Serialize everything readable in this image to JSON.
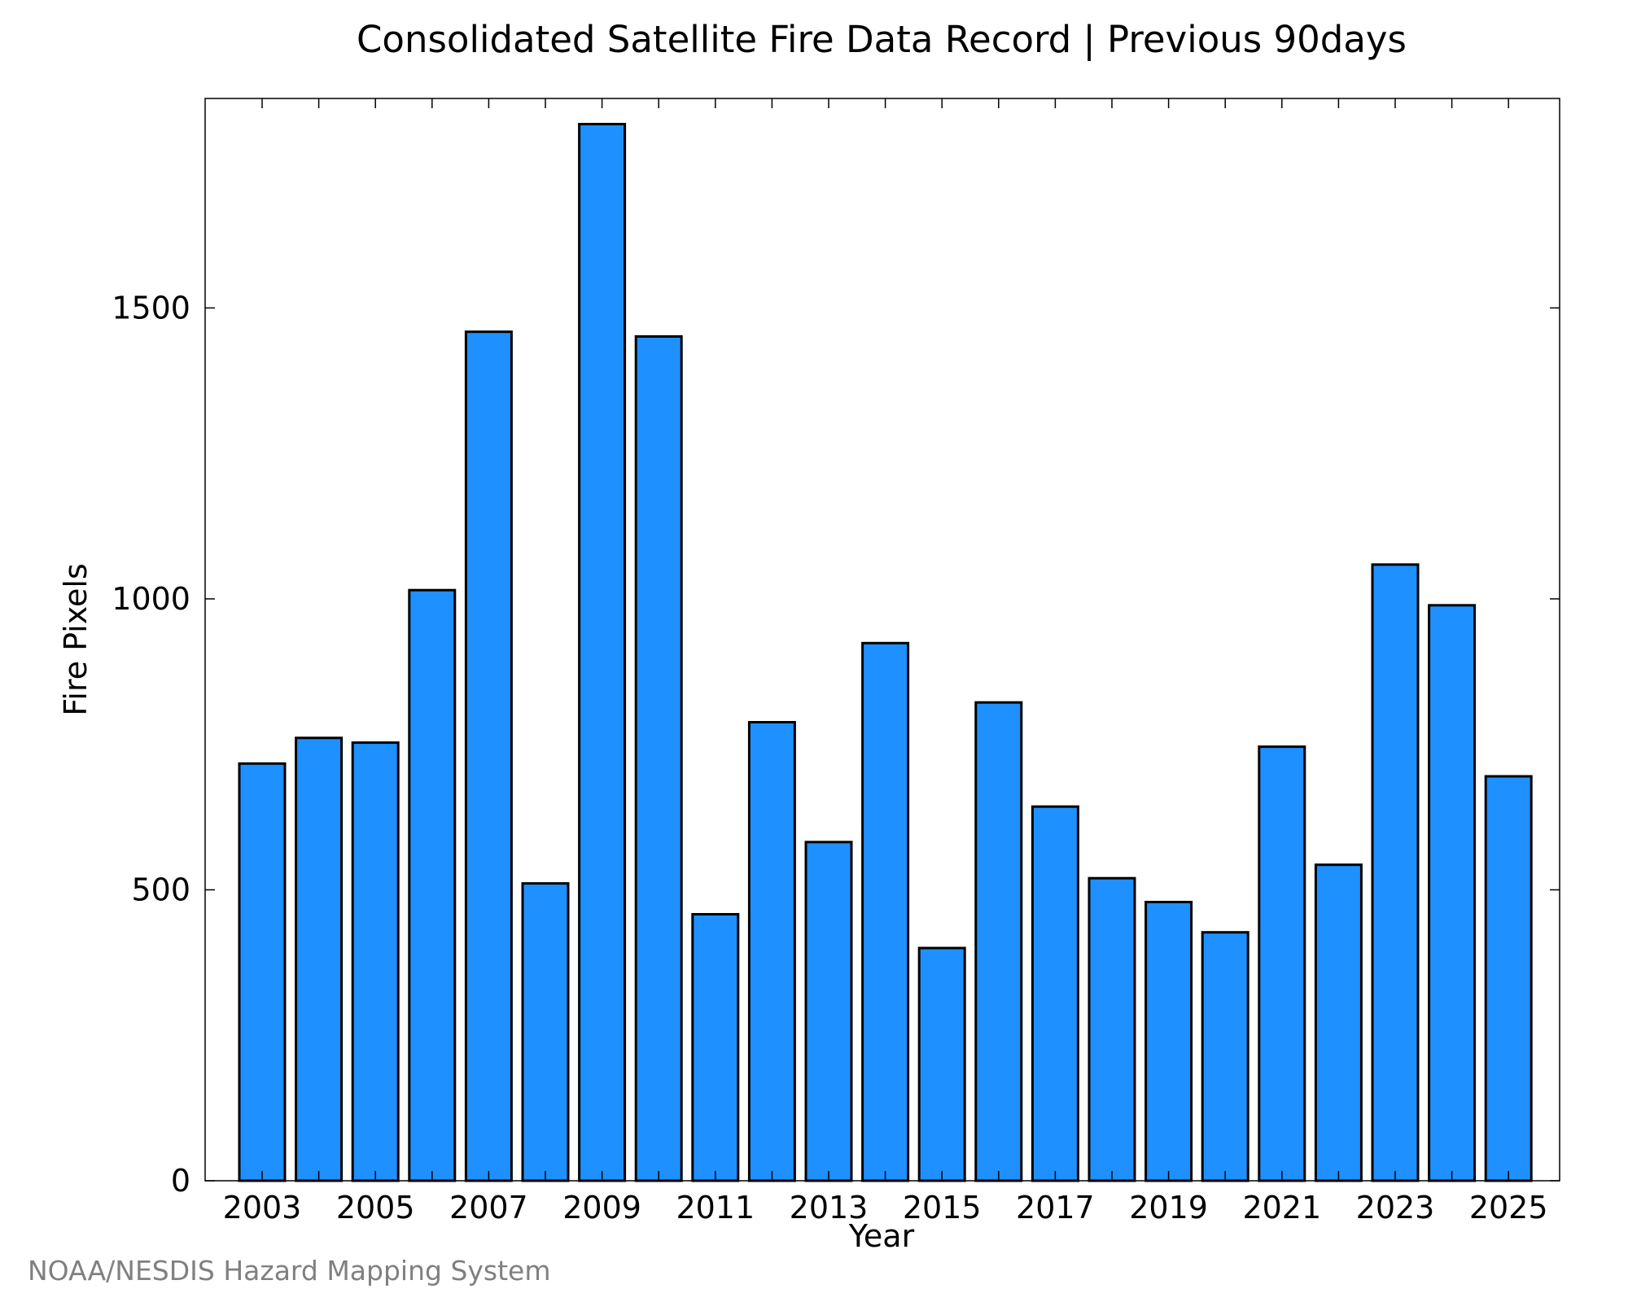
{
  "chart_data": {
    "type": "bar",
    "title": "Consolidated Satellite Fire Data Record | Previous 90days",
    "xlabel": "Year",
    "ylabel": "Fire Pixels",
    "categories": [
      "2003",
      "2004",
      "2005",
      "2006",
      "2007",
      "2008",
      "2009",
      "2010",
      "2011",
      "2012",
      "2013",
      "2014",
      "2015",
      "2016",
      "2017",
      "2018",
      "2019",
      "2020",
      "2021",
      "2022",
      "2023",
      "2024",
      "2025"
    ],
    "x_tick_labels": [
      "2003",
      "2005",
      "2007",
      "2009",
      "2011",
      "2013",
      "2015",
      "2017",
      "2019",
      "2021",
      "2023",
      "2025"
    ],
    "values": [
      717,
      761,
      753,
      1015,
      1459,
      511,
      1816,
      1451,
      458,
      788,
      582,
      924,
      400,
      822,
      643,
      520,
      479,
      427,
      746,
      543,
      1059,
      989,
      695
    ],
    "ylim": [
      0,
      1860
    ],
    "y_ticks": [
      0,
      500,
      1000,
      1500
    ],
    "y_tick_labels": [
      "0",
      "500",
      "1000",
      "1500"
    ],
    "grid": false,
    "legend": "none",
    "colors": {
      "bar_fill": "#1e90ff",
      "bar_stroke": "#000000",
      "credit": "#808080"
    }
  },
  "credit": "NOAA/NESDIS Hazard Mapping System"
}
